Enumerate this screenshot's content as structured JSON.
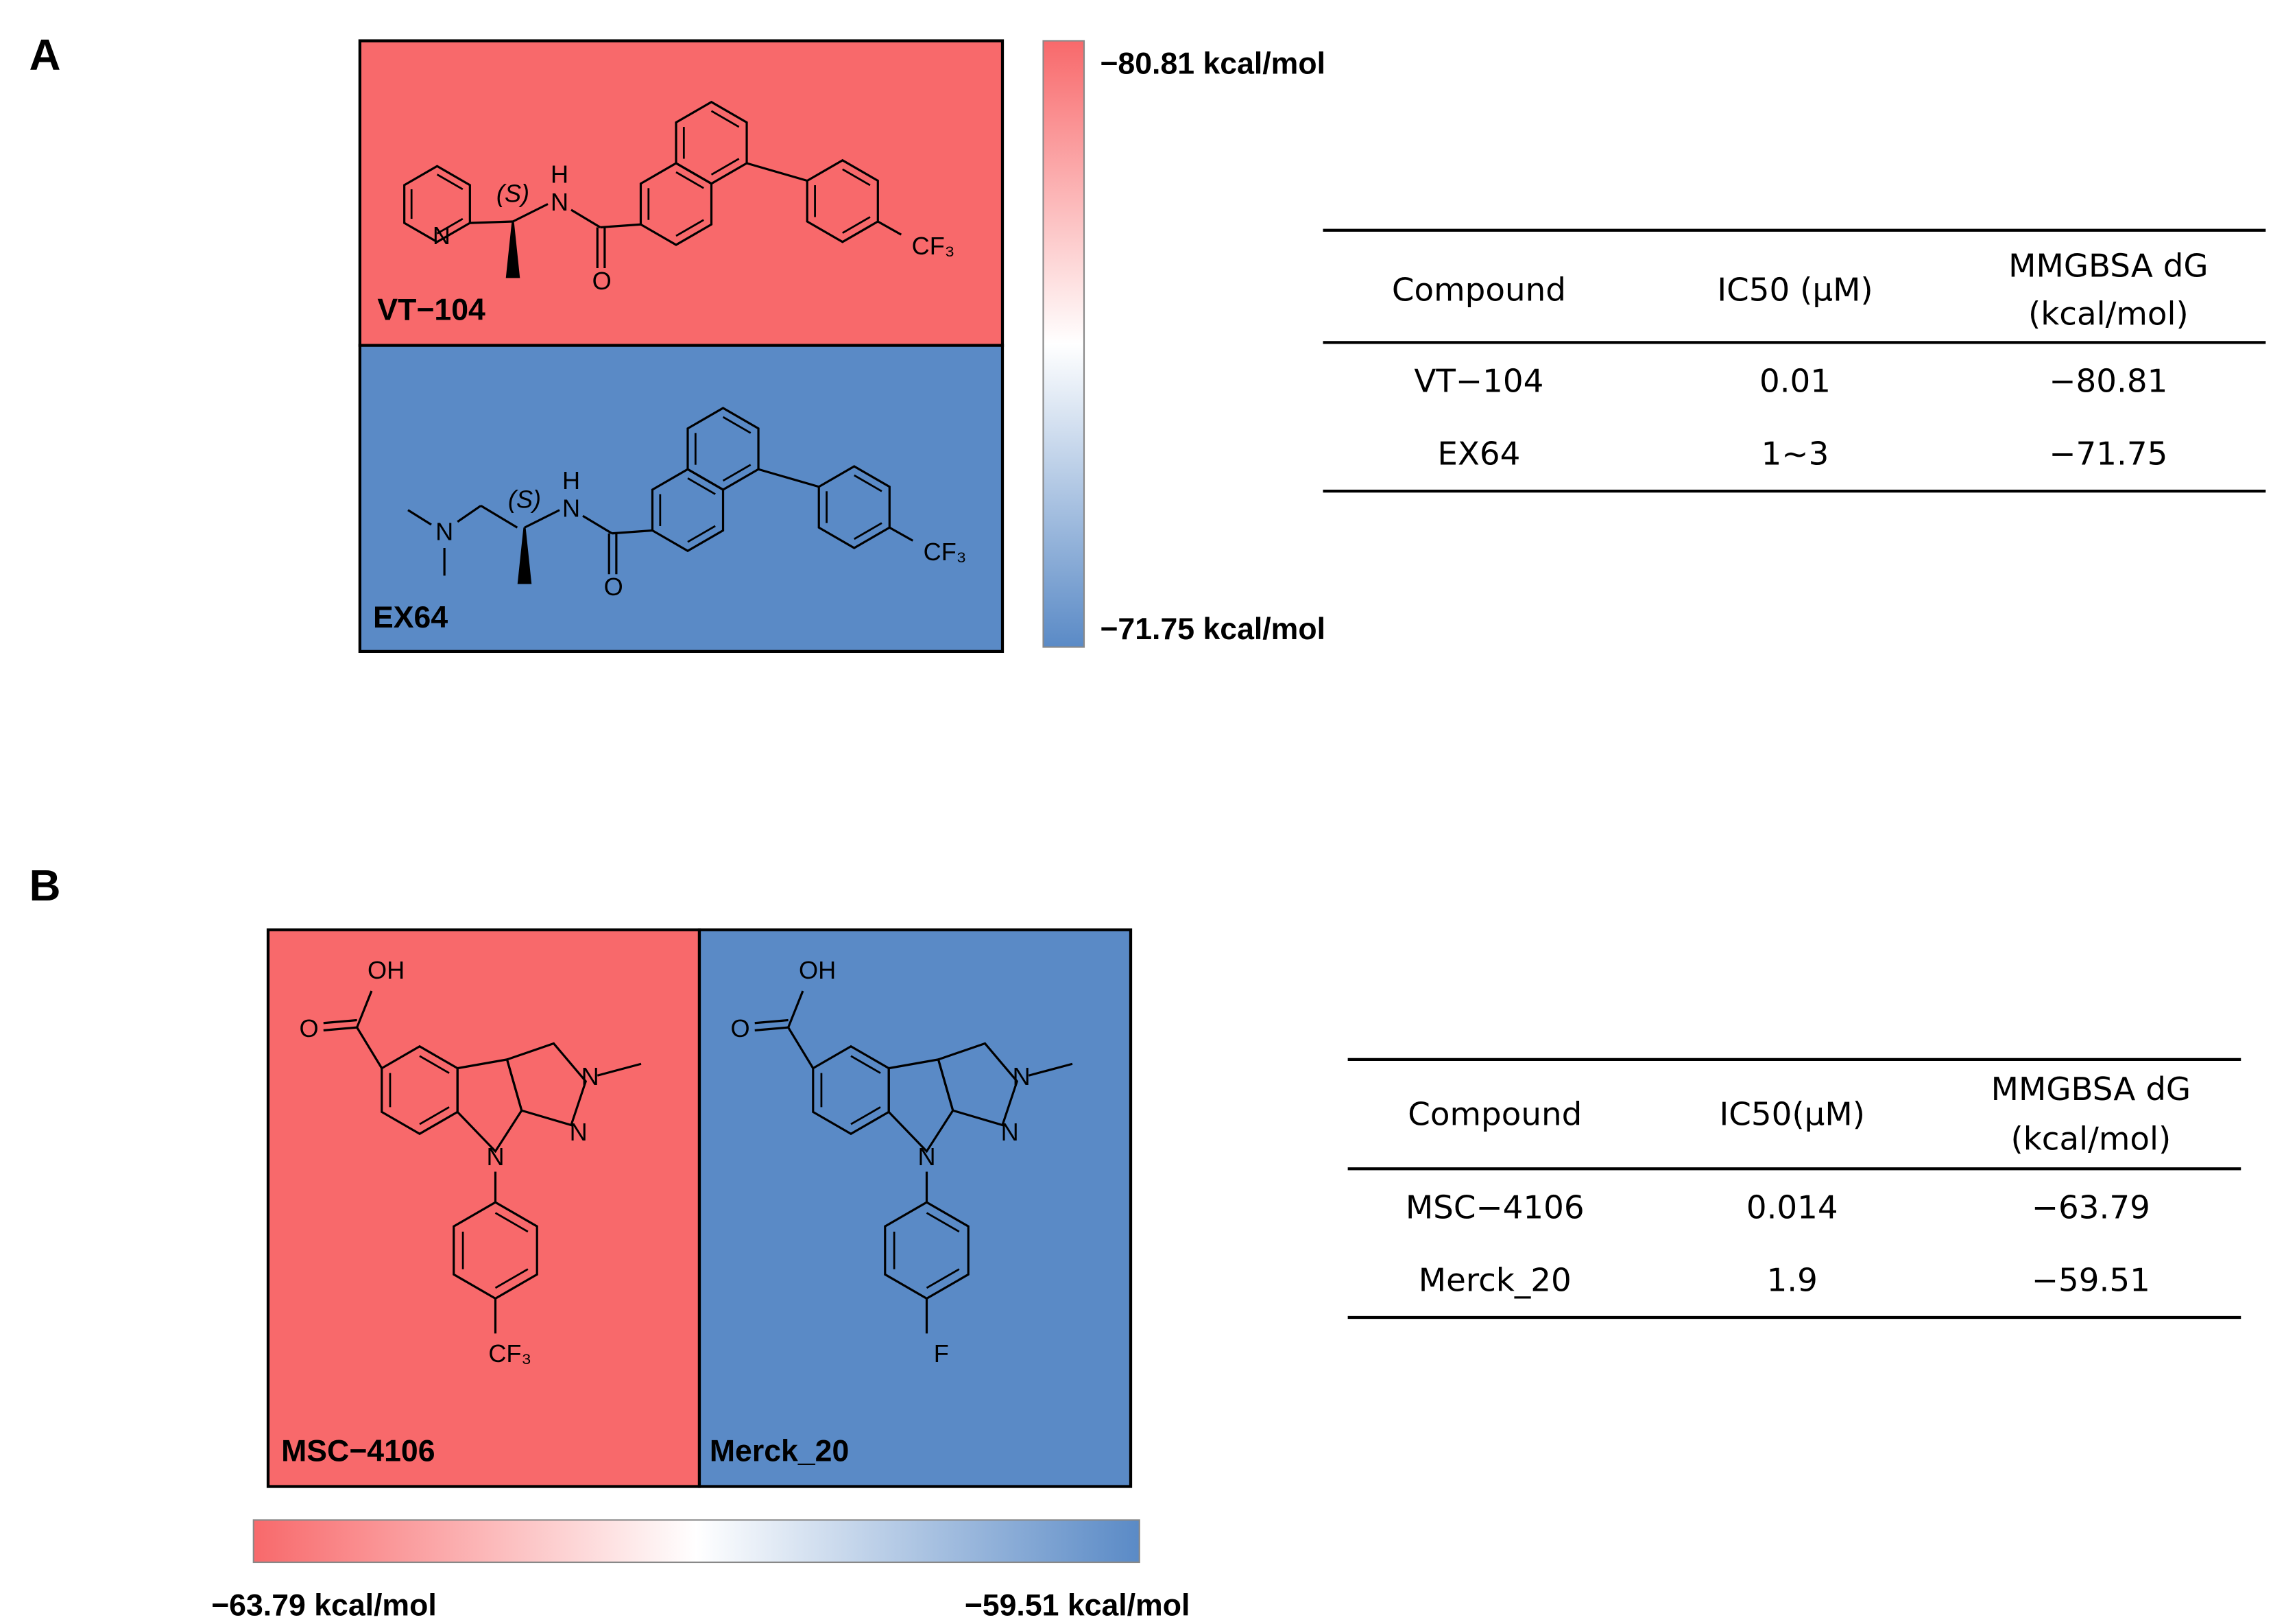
{
  "panel_a": {
    "label": "A",
    "compounds": [
      {
        "name": "VT−104",
        "color": "#f8696b",
        "atoms": [
          "N",
          "(S)",
          "N",
          "H",
          "O",
          "CF₃"
        ]
      },
      {
        "name": "EX64",
        "color": "#5a8ac6",
        "atoms": [
          "N",
          "(S)",
          "N",
          "H",
          "O",
          "CF₃"
        ]
      }
    ],
    "colorbar": {
      "colors": [
        "#f8696b",
        "#ffffff",
        "#5a8ac6"
      ],
      "top_label": "−80.81 kcal/mol",
      "bottom_label": "−71.75 kcal/mol"
    },
    "table": {
      "header": [
        "Compound",
        "IC50 (μM)",
        [
          "MMGBSA dG",
          "(kcal/mol)"
        ]
      ],
      "rows": [
        [
          "VT−104",
          "0.01",
          "−80.81"
        ],
        [
          "EX64",
          "1~3",
          "−71.75"
        ]
      ]
    }
  },
  "panel_b": {
    "label": "B",
    "compounds": [
      {
        "name": "MSC−4106",
        "color": "#f8696b",
        "atoms": [
          "OH",
          "O",
          "N",
          "N",
          "N",
          "CF₃"
        ]
      },
      {
        "name": "Merck_20",
        "color": "#5a8ac6",
        "atoms": [
          "OH",
          "O",
          "N",
          "N",
          "N",
          "F"
        ]
      }
    ],
    "colorbar": {
      "colors": [
        "#f8696b",
        "#ffffff",
        "#5a8ac6"
      ],
      "left_label": "−63.79 kcal/mol",
      "right_label": "−59.51 kcal/mol"
    },
    "table": {
      "header": [
        "Compound",
        "IC50(μM)",
        [
          "MMGBSA dG",
          "(kcal/mol)"
        ]
      ],
      "rows": [
        [
          "MSC−4106",
          "0.014",
          "−63.79"
        ],
        [
          "Merck_20",
          "1.9",
          "−59.51"
        ]
      ]
    }
  }
}
